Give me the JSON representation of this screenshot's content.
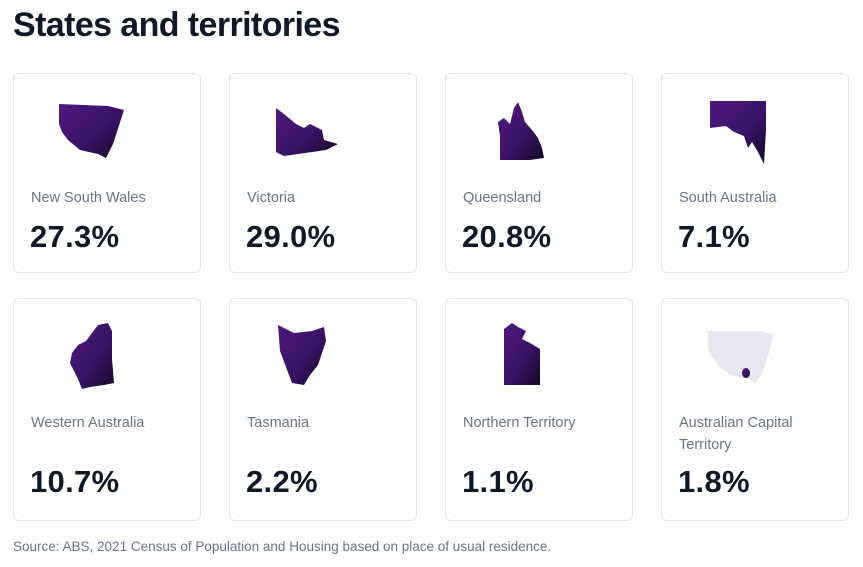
{
  "title": "States and territories",
  "states": [
    {
      "label": "New South Wales",
      "value": "27.3%",
      "icon": "nsw-map-icon"
    },
    {
      "label": "Victoria",
      "value": "29.0%",
      "icon": "vic-map-icon"
    },
    {
      "label": "Queensland",
      "value": "20.8%",
      "icon": "qld-map-icon"
    },
    {
      "label": "South Australia",
      "value": "7.1%",
      "icon": "sa-map-icon"
    },
    {
      "label": "Western Australia",
      "value": "10.7%",
      "icon": "wa-map-icon"
    },
    {
      "label": "Tasmania",
      "value": "2.2%",
      "icon": "tas-map-icon"
    },
    {
      "label": "Northern Territory",
      "value": "1.1%",
      "icon": "nt-map-icon"
    },
    {
      "label": "Australian Capital Territory",
      "value": "1.8%",
      "icon": "act-map-icon"
    }
  ],
  "colors": {
    "map_start": "#4a1577",
    "map_end": "#1a0a33",
    "nsw_outline": "#e6e7ee",
    "card_border": "#e2e4ea"
  },
  "source": "Source: ABS, 2021 Census of Population and Housing based on place of usual residence."
}
